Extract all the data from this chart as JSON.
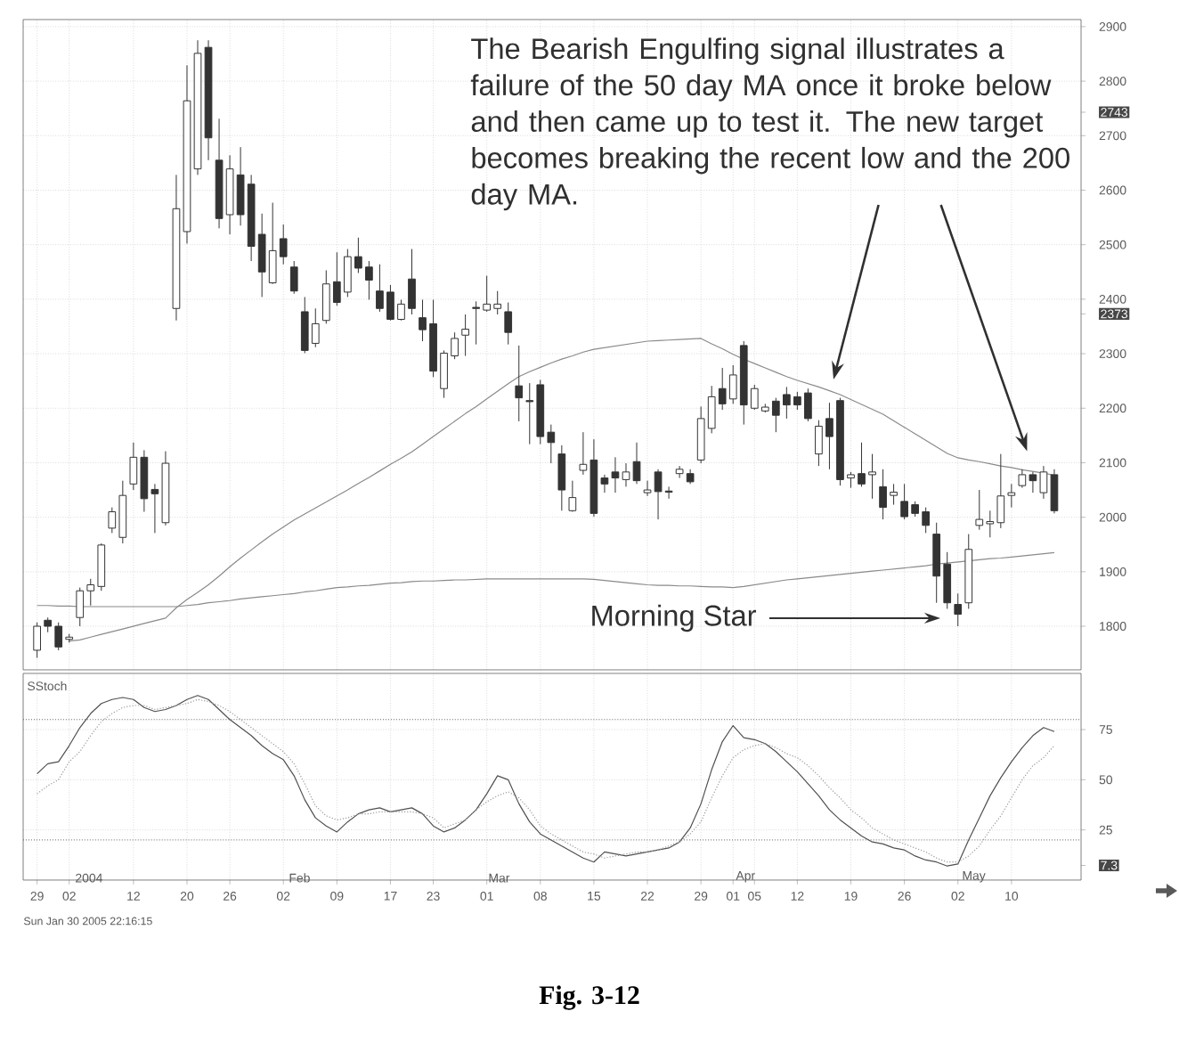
{
  "chart_data": [
    {
      "type": "candlestick",
      "categories": [
        "29",
        null,
        null,
        "02",
        null,
        null,
        null,
        null,
        null,
        "12",
        null,
        null,
        null,
        null,
        "20",
        null,
        null,
        null,
        "26",
        null,
        null,
        null,
        null,
        "02",
        null,
        null,
        null,
        null,
        "09",
        null,
        null,
        null,
        null,
        "17",
        null,
        null,
        null,
        "23",
        null,
        null,
        null,
        null,
        "01",
        null,
        null,
        null,
        null,
        "08",
        null,
        null,
        null,
        null,
        "15",
        null,
        null,
        null,
        null,
        "22",
        null,
        null,
        null,
        null,
        "29",
        null,
        null,
        "01",
        null,
        "05",
        null,
        null,
        null,
        "12",
        null,
        null,
        null,
        null,
        "19",
        null,
        null,
        null,
        null,
        "26",
        null,
        null,
        null,
        null,
        "02",
        null,
        null,
        null,
        null,
        "10",
        null,
        null,
        null,
        null
      ],
      "ohlc": [
        [
          1756,
          1807,
          1742,
          1800
        ],
        [
          1811,
          1816,
          1789,
          1800
        ],
        [
          1800,
          1807,
          1756,
          1762
        ],
        [
          1776,
          1786,
          1770,
          1780
        ],
        [
          1816,
          1871,
          1800,
          1865
        ],
        [
          1865,
          1887,
          1838,
          1876
        ],
        [
          1873,
          1952,
          1865,
          1949
        ],
        [
          1980,
          2018,
          1971,
          2010
        ],
        [
          1963,
          2067,
          1952,
          2040
        ],
        [
          2061,
          2137,
          2050,
          2110
        ],
        [
          2110,
          2123,
          2010,
          2034
        ],
        [
          2051,
          2061,
          1971,
          2043
        ],
        [
          1990,
          2121,
          1985,
          2099
        ],
        [
          2383,
          2628,
          2361,
          2566
        ],
        [
          2524,
          2829,
          2502,
          2764
        ],
        [
          2639,
          2875,
          2628,
          2851
        ],
        [
          2862,
          2875,
          2655,
          2696
        ],
        [
          2655,
          2731,
          2530,
          2548
        ],
        [
          2555,
          2664,
          2519,
          2639
        ],
        [
          2628,
          2679,
          2535,
          2555
        ],
        [
          2611,
          2628,
          2470,
          2497
        ],
        [
          2519,
          2557,
          2404,
          2450
        ],
        [
          2430,
          2577,
          2428,
          2489
        ],
        [
          2511,
          2537,
          2464,
          2478
        ],
        [
          2459,
          2470,
          2410,
          2415
        ],
        [
          2377,
          2404,
          2301,
          2306
        ],
        [
          2319,
          2383,
          2312,
          2355
        ],
        [
          2361,
          2453,
          2355,
          2428
        ],
        [
          2432,
          2486,
          2388,
          2394
        ],
        [
          2413,
          2492,
          2404,
          2478
        ],
        [
          2478,
          2513,
          2448,
          2457
        ],
        [
          2459,
          2470,
          2399,
          2435
        ],
        [
          2415,
          2464,
          2377,
          2383
        ],
        [
          2413,
          2426,
          2361,
          2363
        ],
        [
          2363,
          2399,
          2361,
          2391
        ],
        [
          2437,
          2492,
          2372,
          2383
        ],
        [
          2366,
          2399,
          2323,
          2344
        ],
        [
          2355,
          2399,
          2257,
          2268
        ],
        [
          2236,
          2306,
          2219,
          2301
        ],
        [
          2296,
          2339,
          2290,
          2328
        ],
        [
          2334,
          2372,
          2296,
          2345
        ],
        [
          2385,
          2396,
          2317,
          2383
        ],
        [
          2380,
          2443,
          2377,
          2391
        ],
        [
          2383,
          2415,
          2372,
          2391
        ],
        [
          2377,
          2394,
          2317,
          2339
        ],
        [
          2241,
          2315,
          2176,
          2219
        ],
        [
          2214,
          2246,
          2134,
          2212
        ],
        [
          2243,
          2252,
          2134,
          2148
        ],
        [
          2156,
          2170,
          2099,
          2137
        ],
        [
          2116,
          2132,
          2012,
          2050
        ],
        [
          2012,
          2067,
          2010,
          2036
        ],
        [
          2086,
          2156,
          2078,
          2097
        ],
        [
          2105,
          2143,
          2001,
          2007
        ],
        [
          2072,
          2078,
          2045,
          2061
        ],
        [
          2083,
          2110,
          2045,
          2072
        ],
        [
          2069,
          2099,
          2056,
          2083
        ],
        [
          2102,
          2137,
          2061,
          2067
        ],
        [
          2045,
          2067,
          2039,
          2050
        ],
        [
          2083,
          2088,
          1996,
          2047
        ],
        [
          2048,
          2056,
          2034,
          2046
        ],
        [
          2080,
          2094,
          2072,
          2088
        ],
        [
          2080,
          2088,
          2061,
          2065
        ],
        [
          2105,
          2203,
          2099,
          2181
        ],
        [
          2163,
          2241,
          2154,
          2221
        ],
        [
          2236,
          2274,
          2197,
          2208
        ],
        [
          2217,
          2279,
          2208,
          2261
        ],
        [
          2315,
          2323,
          2170,
          2206
        ],
        [
          2200,
          2243,
          2197,
          2236
        ],
        [
          2195,
          2208,
          2192,
          2202
        ],
        [
          2213,
          2219,
          2156,
          2187
        ],
        [
          2225,
          2239,
          2181,
          2206
        ],
        [
          2221,
          2230,
          2197,
          2206
        ],
        [
          2228,
          2236,
          2176,
          2181
        ],
        [
          2116,
          2178,
          2094,
          2167
        ],
        [
          2181,
          2210,
          2088,
          2148
        ],
        [
          2214,
          2219,
          2058,
          2069
        ],
        [
          2072,
          2083,
          2054,
          2078
        ],
        [
          2080,
          2137,
          2056,
          2061
        ],
        [
          2078,
          2116,
          2034,
          2083
        ],
        [
          2056,
          2088,
          1996,
          2018
        ],
        [
          2040,
          2061,
          2023,
          2046
        ],
        [
          2029,
          2061,
          1996,
          2001
        ],
        [
          2023,
          2029,
          2001,
          2007
        ],
        [
          2010,
          2018,
          1971,
          1985
        ],
        [
          1969,
          1990,
          1843,
          1892
        ],
        [
          1914,
          1936,
          1832,
          1843
        ],
        [
          1840,
          1860,
          1800,
          1822
        ],
        [
          1843,
          1969,
          1832,
          1941
        ],
        [
          1985,
          2050,
          1977,
          1996
        ],
        [
          1988,
          2012,
          1963,
          1992
        ],
        [
          1990,
          2116,
          1980,
          2039
        ],
        [
          2040,
          2061,
          2018,
          2045
        ],
        [
          2058,
          2088,
          2054,
          2078
        ],
        [
          2078,
          2083,
          2045,
          2067
        ],
        [
          2045,
          2094,
          2034,
          2083
        ],
        [
          2078,
          2088,
          2007,
          2012
        ]
      ],
      "series": [
        {
          "type": "line",
          "color": "#8a8a8a",
          "values": [
            null,
            null,
            null,
            1773,
            1775,
            1780,
            1785,
            1790,
            1795,
            1800,
            1805,
            1810,
            1815,
            1834,
            1849,
            1862,
            1876,
            1892,
            1909,
            1925,
            1940,
            1955,
            1969,
            1982,
            1995,
            2006,
            2017,
            2028,
            2039,
            2050,
            2062,
            2073,
            2085,
            2097,
            2108,
            2120,
            2134,
            2148,
            2162,
            2176,
            2190,
            2203,
            2217,
            2231,
            2245,
            2258,
            2267,
            2275,
            2283,
            2290,
            2296,
            2303,
            2308,
            2311,
            2314,
            2317,
            2320,
            2323,
            2324,
            2325,
            2326,
            2327,
            2328,
            2318,
            2309,
            2299,
            2290,
            2282,
            2274,
            2266,
            2258,
            2251,
            2245,
            2239,
            2232,
            2225,
            2216,
            2207,
            2198,
            2189,
            2177,
            2165,
            2153,
            2141,
            2129,
            2117,
            2109,
            2105,
            2102,
            2098,
            2094,
            2091,
            2087,
            2084,
            2081,
            2077
          ]
        },
        {
          "type": "line",
          "color": "#8a8a8a",
          "values": [
            1838,
            1838,
            1837,
            1837,
            1836,
            1836,
            1836,
            1836,
            1836,
            1836,
            1836,
            1836,
            1836,
            1836,
            1838,
            1840,
            1843,
            1845,
            1847,
            1850,
            1852,
            1854,
            1856,
            1858,
            1860,
            1863,
            1865,
            1868,
            1871,
            1872,
            1874,
            1875,
            1877,
            1879,
            1880,
            1882,
            1883,
            1883,
            1884,
            1885,
            1885,
            1886,
            1887,
            1887,
            1887,
            1887,
            1887,
            1887,
            1887,
            1887,
            1887,
            1887,
            1886,
            1884,
            1882,
            1880,
            1878,
            1876,
            1875,
            1875,
            1874,
            1874,
            1873,
            1872,
            1872,
            1871,
            1873,
            1876,
            1879,
            1882,
            1885,
            1887,
            1889,
            1891,
            1893,
            1895,
            1897,
            1899,
            1901,
            1903,
            1905,
            1907,
            1909,
            1911,
            1914,
            1916,
            1918,
            1920,
            1922,
            1924,
            1925,
            1927,
            1929,
            1931,
            1933,
            1935
          ]
        }
      ],
      "ylim": [
        1720,
        2913
      ],
      "yticks": [
        1800,
        1900,
        2000,
        2100,
        2200,
        2300,
        2373,
        2400,
        2500,
        2600,
        2700,
        2743,
        2800,
        2900
      ],
      "tick_labels": "y",
      "grid": true,
      "annotations": [
        "The Bearish Engulfing signal illustrates a failure of the 50 day MA once it broke below and then came up to test it. The new target becomes breaking the recent low and the 200 day MA.",
        "Morning Star"
      ]
    },
    {
      "type": "line",
      "title": "SStoch",
      "categories": [
        "29",
        null,
        null,
        "02",
        null,
        null,
        null,
        null,
        null,
        "12",
        null,
        null,
        null,
        null,
        "20",
        null,
        null,
        null,
        "26",
        null,
        null,
        null,
        null,
        "02",
        null,
        null,
        null,
        null,
        "09",
        null,
        null,
        null,
        null,
        "17",
        null,
        null,
        null,
        "23",
        null,
        null,
        null,
        null,
        "01",
        null,
        null,
        null,
        null,
        "08",
        null,
        null,
        null,
        null,
        "15",
        null,
        null,
        null,
        null,
        "22",
        null,
        null,
        null,
        null,
        "29",
        null,
        null,
        "01",
        null,
        "05",
        null,
        null,
        null,
        "12",
        null,
        null,
        null,
        null,
        "19",
        null,
        null,
        null,
        null,
        "26",
        null,
        null,
        null,
        null,
        "02",
        null,
        null,
        null,
        null,
        "10",
        null,
        null,
        null,
        null
      ],
      "series": [
        {
          "color": "#505050",
          "line_style": "solid",
          "values": [
            53,
            58,
            59,
            67,
            76,
            83,
            88,
            90,
            91,
            90,
            86,
            84,
            85,
            87,
            90,
            92,
            90,
            85,
            80,
            76,
            72,
            67,
            63,
            60,
            52,
            40,
            31,
            27,
            24,
            29,
            33,
            35,
            36,
            34,
            35,
            36,
            33,
            27,
            24,
            26,
            30,
            35,
            43,
            52,
            50,
            38,
            29,
            23,
            20,
            17,
            14,
            11,
            9,
            14,
            13,
            12,
            13,
            14,
            15,
            16,
            19,
            26,
            38,
            55,
            69,
            77,
            71,
            70,
            68,
            64,
            59,
            54,
            48,
            42,
            35,
            30,
            26,
            22,
            19,
            18,
            16,
            15,
            12,
            10,
            9,
            7,
            8,
            20,
            31,
            42,
            51,
            59,
            66,
            72,
            76,
            74
          ]
        },
        {
          "color": "#9a9a9a",
          "line_style": "dotted",
          "values": [
            43,
            47,
            50,
            59,
            64,
            72,
            79,
            83,
            86,
            87,
            87,
            85,
            86,
            87,
            88,
            90,
            89,
            87,
            84,
            80,
            76,
            72,
            68,
            64,
            58,
            48,
            37,
            32,
            30,
            31,
            33,
            33,
            34,
            34,
            34,
            34,
            33,
            31,
            26,
            28,
            30,
            35,
            39,
            42,
            44,
            41,
            35,
            27,
            23,
            20,
            17,
            14,
            13,
            11,
            12,
            13,
            14,
            14,
            15,
            17,
            19,
            23,
            29,
            41,
            52,
            61,
            65,
            67,
            68,
            66,
            63,
            61,
            57,
            52,
            46,
            41,
            35,
            31,
            26,
            23,
            20,
            18,
            16,
            14,
            11,
            9,
            9,
            12,
            17,
            25,
            32,
            41,
            50,
            57,
            61,
            67
          ]
        }
      ],
      "ylim": [
        0,
        103
      ],
      "yticks": [
        7.3,
        25,
        50,
        75
      ],
      "grid": true,
      "ref_lines": [
        {
          "axis": "y",
          "value": 80,
          "line_style": "dotted"
        },
        {
          "axis": "y",
          "value": 20,
          "line_style": "dotted"
        }
      ],
      "annotations": [
        "2004",
        "Feb",
        "Mar",
        "Apr",
        "May",
        "Sun Jan 30 2005 22:16:15",
        "Fig. 3-12"
      ]
    }
  ]
}
